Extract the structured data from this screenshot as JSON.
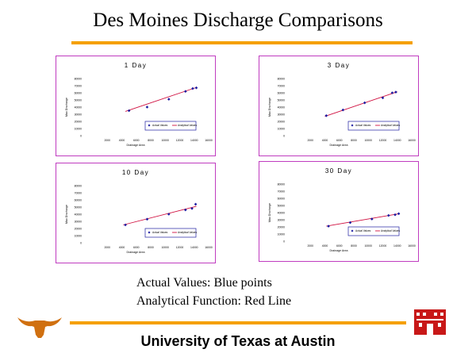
{
  "slide": {
    "title": "Des Moines Discharge Comparisons",
    "caption_line1": "Actual Values: Blue points",
    "caption_line2": "Analytical Function: Red Line",
    "footer": "University of Texas at Austin"
  },
  "colors": {
    "accent_orange": "#f5a000",
    "panel_border": "#c03cc0",
    "legend_border": "#2020a0",
    "point_blue": "#1a1aa0",
    "line_red": "#d01040"
  },
  "logos": {
    "left": "longhorn-logo",
    "right": "castle-logo"
  },
  "chart_data": [
    {
      "type": "scatter",
      "title": "1 Day",
      "xlabel": "Drainage Area",
      "ylabel": "Max Discharge",
      "x_ticks": [
        "2000",
        "4000",
        "6000",
        "8000",
        "10000",
        "12000",
        "14000",
        "16000"
      ],
      "y_ticks": [
        "0",
        "10000",
        "20000",
        "30000",
        "40000",
        "50000",
        "60000",
        "70000",
        "80000"
      ],
      "xlim": [
        0,
        16000
      ],
      "ylim": [
        0,
        80000
      ],
      "legend": [
        "Actual Values",
        "Analytical Values"
      ],
      "series": [
        {
          "name": "Actual Values",
          "x": [
            5000,
            7500,
            10500,
            12800,
            13800,
            14300
          ],
          "y": [
            35000,
            40000,
            51000,
            62000,
            66000,
            67000
          ]
        },
        {
          "name": "Analytical Values",
          "x": [
            4500,
            14300
          ],
          "y": [
            34000,
            67500
          ]
        }
      ]
    },
    {
      "type": "scatter",
      "title": "3 Day",
      "xlabel": "Drainage Area",
      "ylabel": "Max Discharge",
      "x_ticks": [
        "2000",
        "4000",
        "6000",
        "8000",
        "10000",
        "12000",
        "14000",
        "16000"
      ],
      "y_ticks": [
        "0",
        "10000",
        "20000",
        "30000",
        "40000",
        "50000",
        "60000",
        "70000",
        "80000"
      ],
      "xlim": [
        0,
        16000
      ],
      "ylim": [
        0,
        80000
      ],
      "legend": [
        "Actual Values",
        "Analytical Values"
      ],
      "series": [
        {
          "name": "Actual Values",
          "x": [
            4200,
            6500,
            9500,
            12000,
            13300,
            13800
          ],
          "y": [
            28000,
            36000,
            46000,
            53000,
            60000,
            61000
          ]
        },
        {
          "name": "Analytical Values",
          "x": [
            4000,
            14000
          ],
          "y": [
            27000,
            61500
          ]
        }
      ]
    },
    {
      "type": "scatter",
      "title": "10 Day",
      "xlabel": "Drainage Area",
      "ylabel": "Max Discharge",
      "x_ticks": [
        "2000",
        "4000",
        "6000",
        "8000",
        "10000",
        "12000",
        "14000",
        "16000"
      ],
      "y_ticks": [
        "0",
        "10000",
        "20000",
        "30000",
        "40000",
        "50000",
        "60000",
        "70000",
        "80000"
      ],
      "xlim": [
        0,
        16000
      ],
      "ylim": [
        0,
        80000
      ],
      "legend": [
        "Actual Values",
        "Analytical Values"
      ],
      "series": [
        {
          "name": "Actual Values",
          "x": [
            4500,
            7500,
            10500,
            12800,
            13700,
            14200
          ],
          "y": [
            25000,
            33000,
            40000,
            46000,
            48000,
            54000
          ]
        },
        {
          "name": "Analytical Values",
          "x": [
            4200,
            14300
          ],
          "y": [
            25000,
            51000
          ]
        }
      ]
    },
    {
      "type": "scatter",
      "title": "30 Day",
      "xlabel": "Drainage Area",
      "ylabel": "Max Discharge",
      "x_ticks": [
        "2000",
        "4000",
        "6000",
        "8000",
        "10000",
        "12000",
        "14000",
        "16000"
      ],
      "y_ticks": [
        "0",
        "10000",
        "20000",
        "30000",
        "40000",
        "50000",
        "60000",
        "70000",
        "80000"
      ],
      "xlim": [
        0,
        16000
      ],
      "ylim": [
        0,
        80000
      ],
      "legend": [
        "Actual Values",
        "Analytical Values"
      ],
      "series": [
        {
          "name": "Actual Values",
          "x": [
            4500,
            7500,
            10500,
            12800,
            13700,
            14200
          ],
          "y": [
            21000,
            26000,
            31000,
            36000,
            37000,
            38500
          ]
        },
        {
          "name": "Analytical Values",
          "x": [
            4200,
            14300
          ],
          "y": [
            21000,
            38500
          ]
        }
      ]
    }
  ]
}
